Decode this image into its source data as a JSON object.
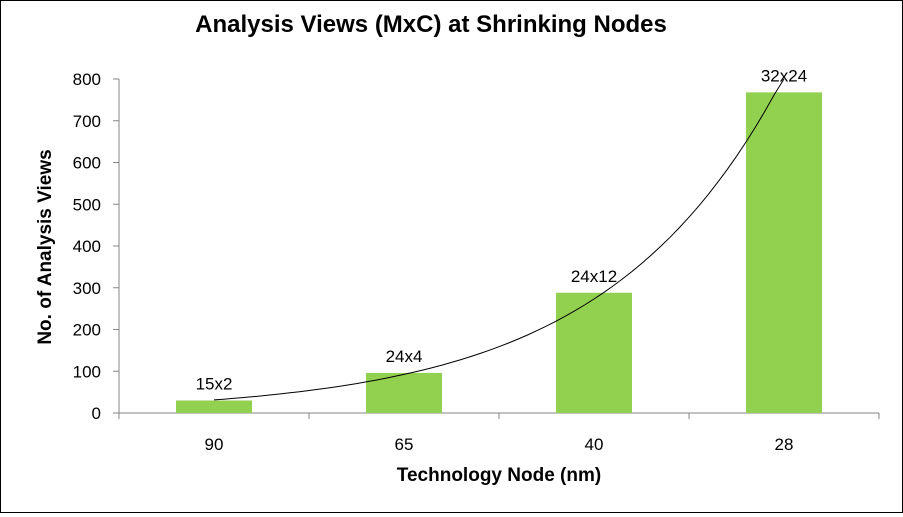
{
  "chart_data": {
    "type": "bar",
    "title": "Analysis Views (MxC) at Shrinking Nodes",
    "xlabel": "Technology Node (nm)",
    "ylabel": "No. of Analysis Views",
    "categories": [
      "90",
      "65",
      "40",
      "28"
    ],
    "values": [
      30,
      96,
      288,
      768
    ],
    "data_labels": [
      "15x2",
      "24x4",
      "24x12",
      "32x24"
    ],
    "ylim": [
      0,
      800
    ],
    "yticks": [
      0,
      100,
      200,
      300,
      400,
      500,
      600,
      700,
      800
    ],
    "grid": false,
    "legend": "none",
    "trendline": "exponential",
    "colors": {
      "bar": "#92d050",
      "axis": "#868686",
      "trend": "#000000"
    }
  }
}
